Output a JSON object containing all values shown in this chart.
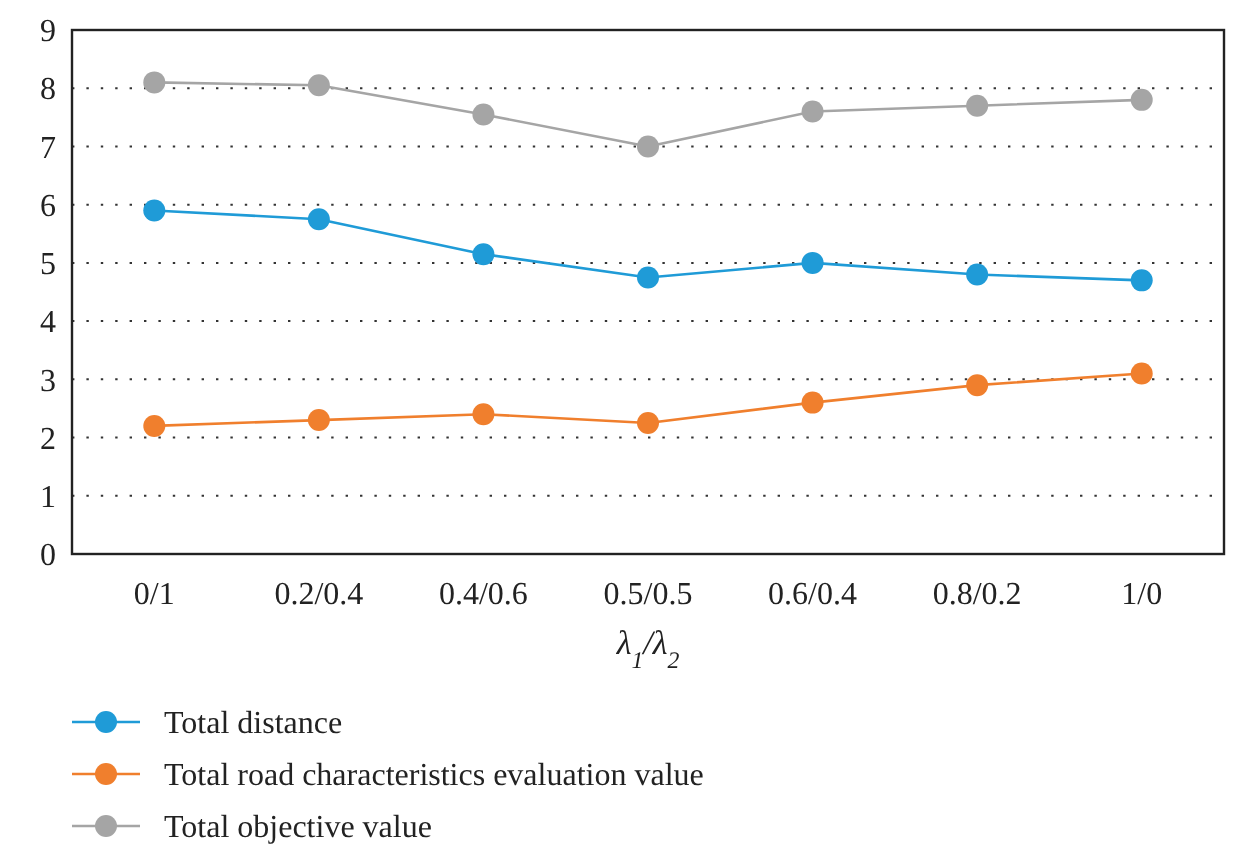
{
  "chart_data": {
    "type": "line",
    "xlabel": "λ$_{1}$/λ$_{2}$",
    "categories": [
      "0/1",
      "0.2/0.4",
      "0.4/0.6",
      "0.5/0.5",
      "0.6/0.4",
      "0.8/0.2",
      "1/0"
    ],
    "series": [
      {
        "name": "Total distance",
        "color": "#1f9bd7",
        "values": [
          5.9,
          5.75,
          5.15,
          4.75,
          5.0,
          4.8,
          4.7
        ]
      },
      {
        "name": "Total road characteristics evaluation value",
        "color": "#f07f2d",
        "values": [
          2.2,
          2.3,
          2.4,
          2.25,
          2.6,
          2.9,
          3.1
        ]
      },
      {
        "name": "Total objective value",
        "color": "#a5a5a5",
        "values": [
          8.1,
          8.05,
          7.55,
          7.0,
          7.6,
          7.7,
          7.8
        ]
      }
    ],
    "ylim": [
      0,
      9
    ],
    "yticks": [
      0,
      1,
      2,
      3,
      4,
      5,
      6,
      7,
      8,
      9
    ],
    "grid": "y",
    "legend": "bottom",
    "marker": "circle",
    "line_style": "solid"
  }
}
